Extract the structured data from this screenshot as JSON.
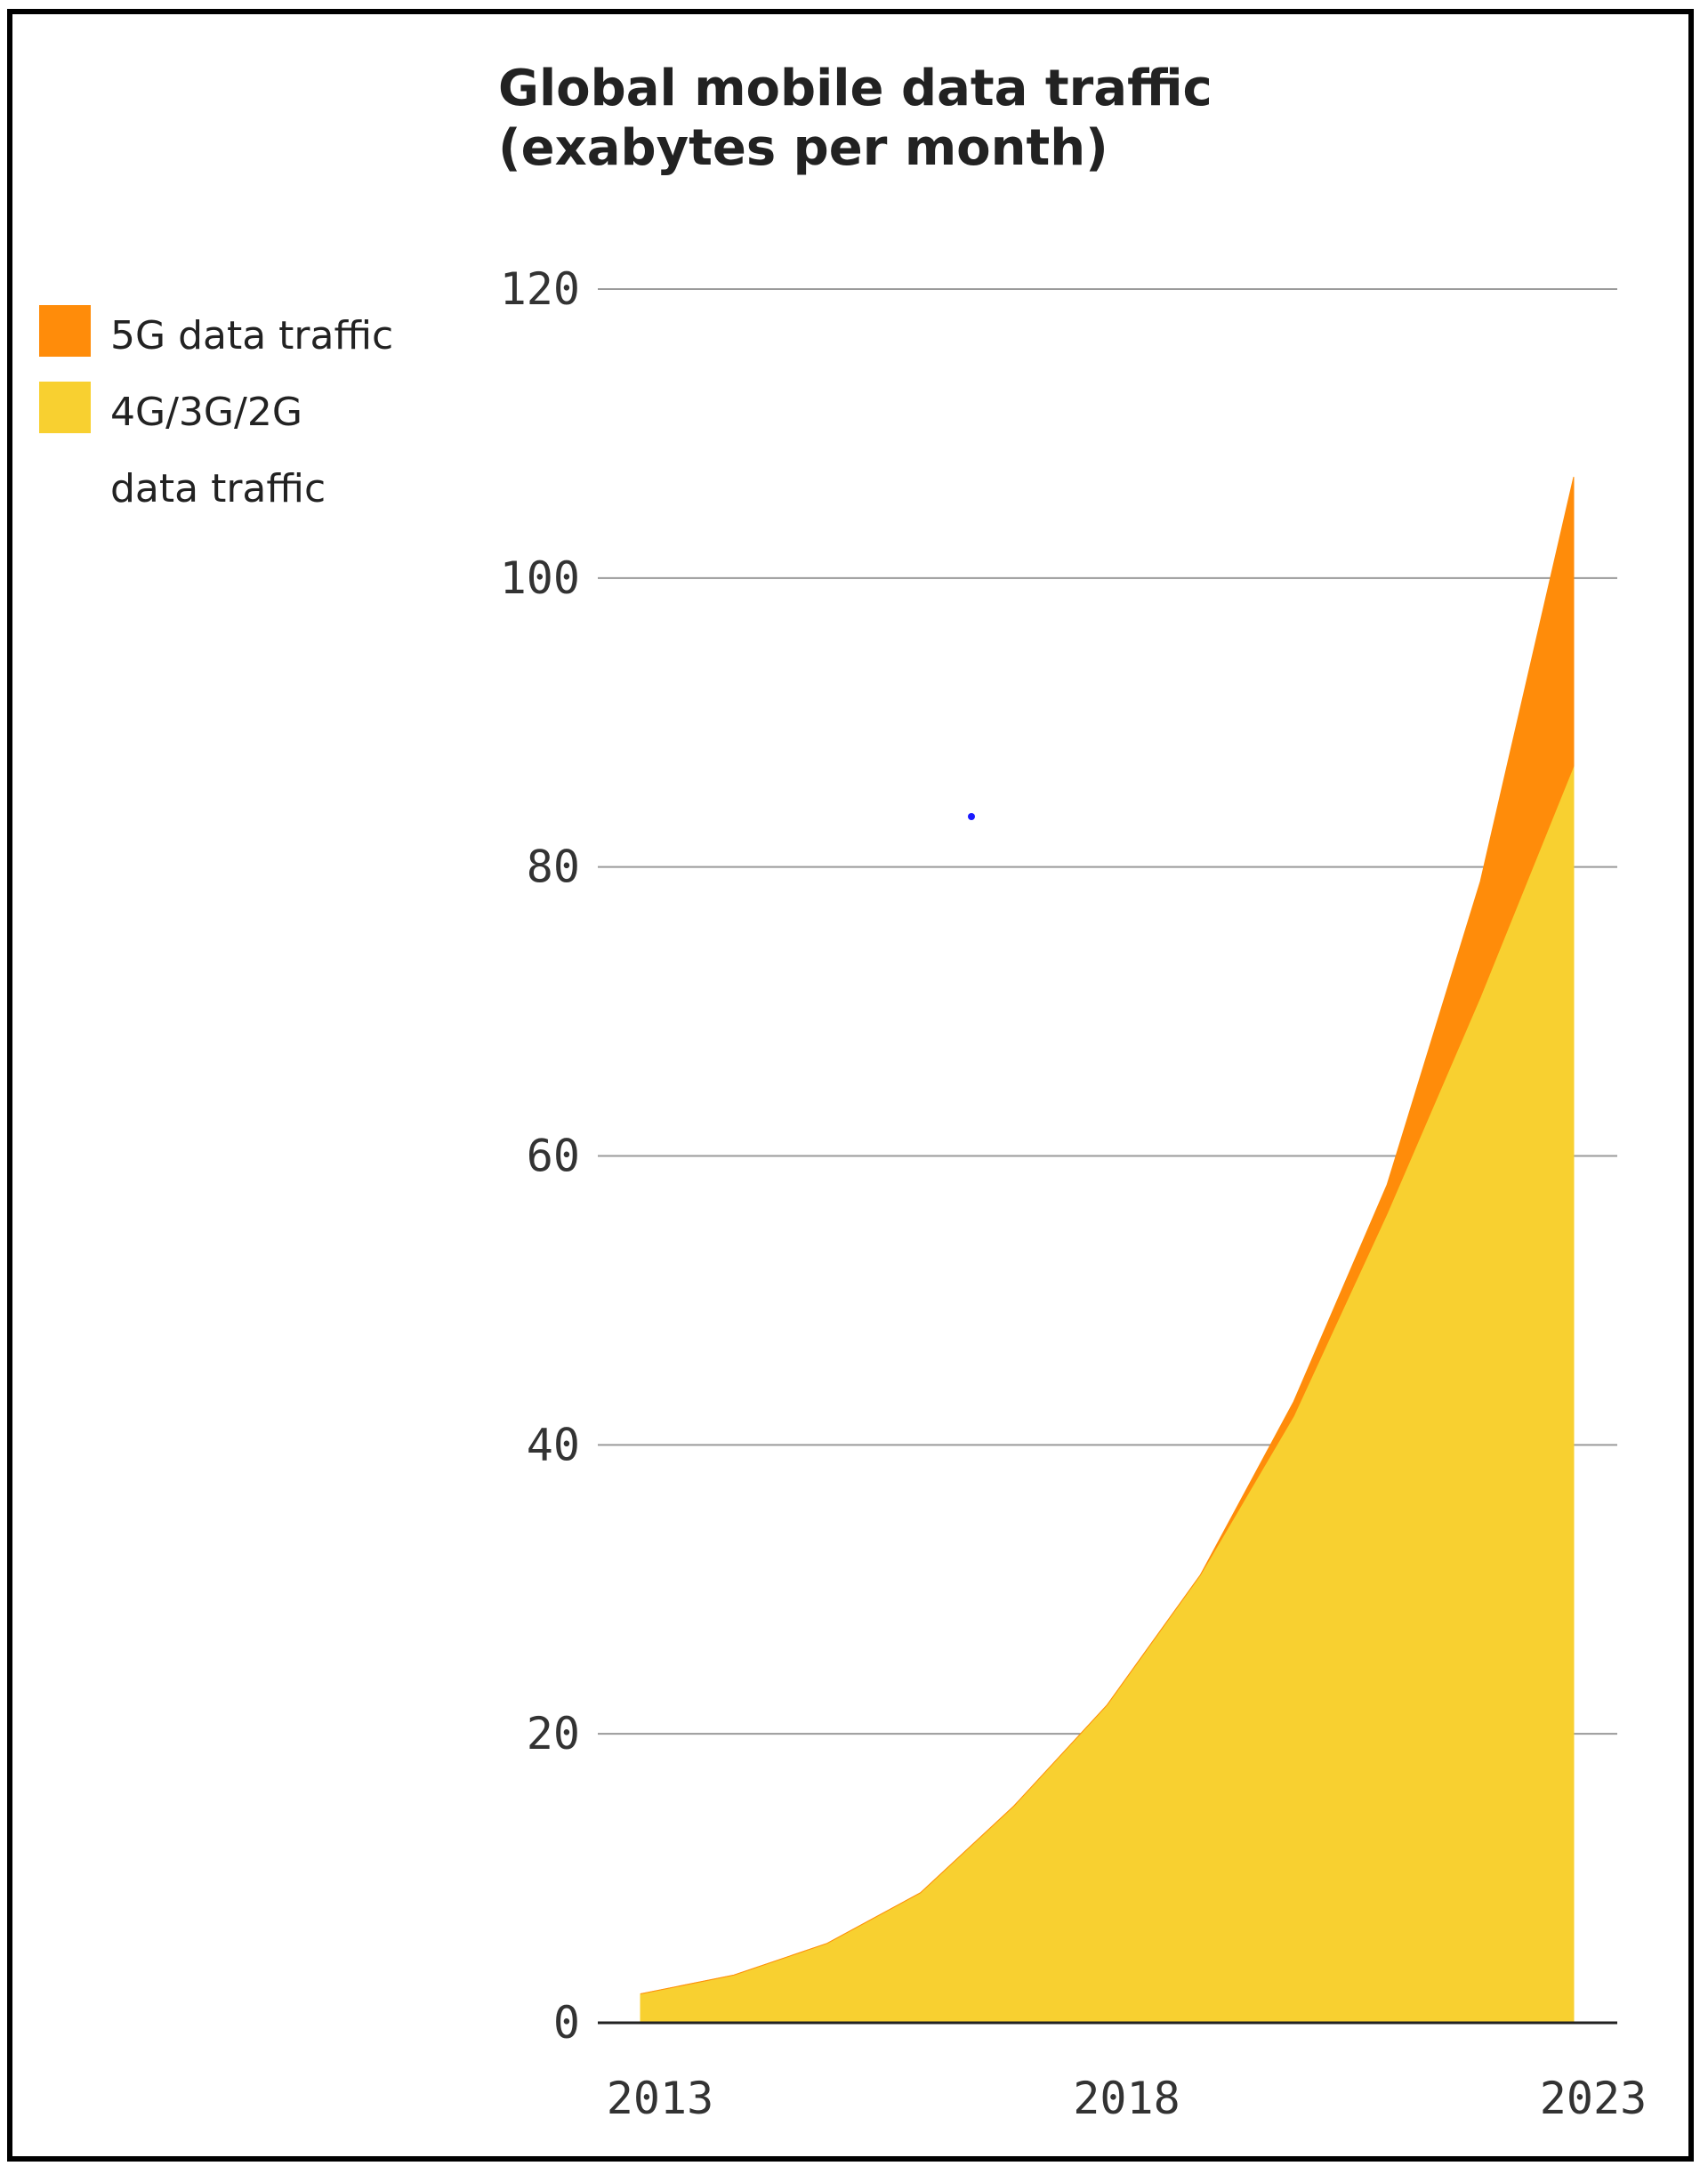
{
  "chart_data": {
    "type": "area",
    "stacked": true,
    "title": "Global mobile data traffic",
    "subtitle": "(exabytes per month)",
    "x": [
      2013,
      2014,
      2015,
      2016,
      2017,
      2018,
      2019,
      2020,
      2021,
      2022,
      2023
    ],
    "xticks": [
      "2013",
      "2018",
      "2023"
    ],
    "xlim": [
      2013,
      2023
    ],
    "ylim": [
      0,
      120
    ],
    "yticks": [
      "0",
      "20",
      "40",
      "60",
      "80",
      "100",
      "120"
    ],
    "grid": "horizontal",
    "legend_position": "left",
    "series": [
      {
        "name": "4G/3G/2G data traffic",
        "color": "#F8D030",
        "values": [
          2,
          3.3,
          5.5,
          9,
          15,
          22,
          31,
          42,
          56,
          71,
          87
        ]
      },
      {
        "name": "5G data traffic",
        "color": "#FF8C0A",
        "values": [
          0,
          0,
          0,
          0,
          0,
          0,
          0,
          1,
          2,
          8,
          20
        ]
      }
    ]
  },
  "legend": {
    "items": [
      {
        "label": "5G data traffic",
        "color": "#FF8C0A"
      },
      {
        "label": "4G/3G/2G",
        "color": "#F8D030"
      },
      {
        "label": "data traffic"
      }
    ]
  }
}
